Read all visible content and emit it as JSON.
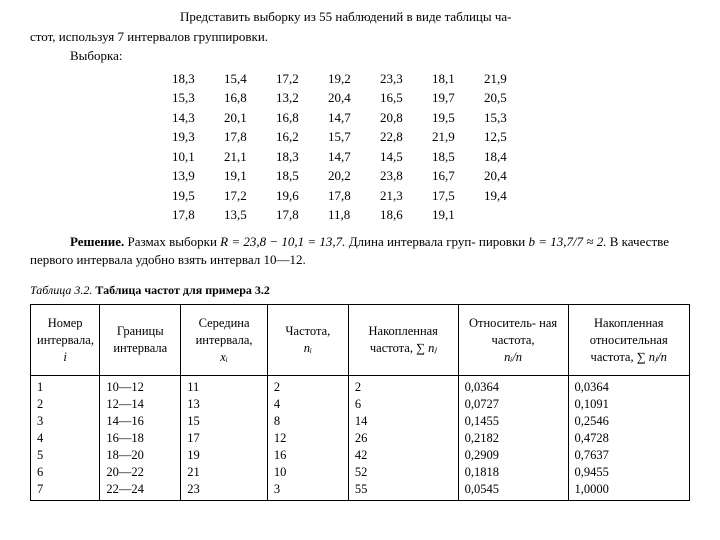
{
  "statement_line1": "Представить выборку из 55 наблюдений в виде таблицы ча-",
  "statement_line2": "стот, используя 7 интервалов группировки.",
  "sample_label": "Выборка:",
  "sample_rows": [
    [
      "18,3",
      "15,4",
      "17,2",
      "19,2",
      "23,3",
      "18,1",
      "21,9"
    ],
    [
      "15,3",
      "16,8",
      "13,2",
      "20,4",
      "16,5",
      "19,7",
      "20,5"
    ],
    [
      "14,3",
      "20,1",
      "16,8",
      "14,7",
      "20,8",
      "19,5",
      "15,3"
    ],
    [
      "19,3",
      "17,8",
      "16,2",
      "15,7",
      "22,8",
      "21,9",
      "12,5"
    ],
    [
      "10,1",
      "21,1",
      "18,3",
      "14,7",
      "14,5",
      "18,5",
      "18,4"
    ],
    [
      "13,9",
      "19,1",
      "18,5",
      "20,2",
      "23,8",
      "16,7",
      "20,4"
    ],
    [
      "19,5",
      "17,2",
      "19,6",
      "17,8",
      "21,3",
      "17,5",
      "19,4"
    ],
    [
      "17,8",
      "13,5",
      "17,8",
      "11,8",
      "18,6",
      "19,1",
      ""
    ]
  ],
  "solution_label": "Решение.",
  "solution_body_1": " Размах выборки ",
  "solution_R": "R = 23,8 − 10,1 = 13,7.",
  "solution_body_2": " Длина интервала груп- пировки ",
  "solution_b": "b = 13,7/7 ≈ 2.",
  "solution_body_3": " В качестве первого интервала удобно взять интервал 10—12.",
  "table_caption_num": "Таблица 3.2.",
  "table_caption_title": " Таблица частот для примера 3.2",
  "headers": {
    "num": "Номер интервала,",
    "num_s": "i",
    "bounds": "Границы интервала",
    "mid": "Середина интервала,",
    "mid_s": "xᵢ",
    "freq": "Частота,",
    "freq_s": "nᵢ",
    "cum": "Накопленная частота, ",
    "cum_s": "∑ nⱼ",
    "rel": "Относитель- ная частота,",
    "rel_s": "nᵢ/n",
    "crel": "Накопленная относительная частота, ",
    "crel_s": "∑ nⱼ/n"
  },
  "freq_rows": [
    {
      "i": "1",
      "b": "10—12",
      "m": "11",
      "n": "2",
      "cf": "2",
      "rf": "0,0364",
      "crf": "0,0364"
    },
    {
      "i": "2",
      "b": "12—14",
      "m": "13",
      "n": "4",
      "cf": "6",
      "rf": "0,0727",
      "crf": "0,1091"
    },
    {
      "i": "3",
      "b": "14—16",
      "m": "15",
      "n": "8",
      "cf": "14",
      "rf": "0,1455",
      "crf": "0,2546"
    },
    {
      "i": "4",
      "b": "16—18",
      "m": "17",
      "n": "12",
      "cf": "26",
      "rf": "0,2182",
      "crf": "0,4728"
    },
    {
      "i": "5",
      "b": "18—20",
      "m": "19",
      "n": "16",
      "cf": "42",
      "rf": "0,2909",
      "crf": "0,7637"
    },
    {
      "i": "6",
      "b": "20—22",
      "m": "21",
      "n": "10",
      "cf": "52",
      "rf": "0,1818",
      "crf": "0,9455"
    },
    {
      "i": "7",
      "b": "22—24",
      "m": "23",
      "n": "3",
      "cf": "55",
      "rf": "0,0545",
      "crf": "1,0000"
    }
  ]
}
